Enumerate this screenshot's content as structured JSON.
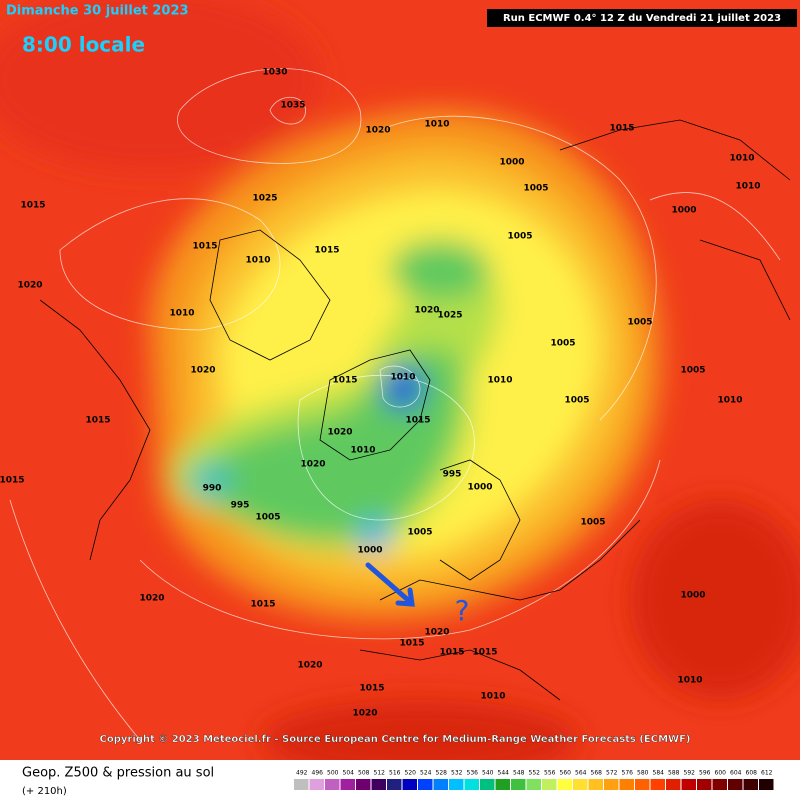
{
  "header": {
    "title": "Dimanche 30 juillet 2023",
    "subtitle": "8:00 locale",
    "run": "Run ECMWF 0.4° 12 Z du Vendredi 21 juillet 2023"
  },
  "map": {
    "isobar_labels": [
      "1030",
      "1035",
      "1020",
      "1010",
      "1015",
      "1010",
      "1000",
      "1010",
      "1005",
      "1025",
      "1000",
      "1015",
      "1005",
      "1015",
      "1010",
      "1015",
      "1020",
      "1010",
      "1020",
      "1025",
      "1005",
      "1005",
      "1020",
      "1010",
      "1015",
      "1010",
      "1005",
      "1015",
      "1020",
      "1015",
      "1010",
      "1020",
      "995",
      "1000",
      "990",
      "995",
      "1005",
      "1015",
      "1005",
      "1000",
      "1005",
      "1000",
      "1020",
      "1015",
      "1020",
      "1015",
      "1015",
      "1015",
      "1020",
      "1015",
      "1010",
      "1010",
      "1020",
      "1010",
      "1005"
    ],
    "copyright": "Copyright © 2023 Meteociel.fr - Source European Centre for Medium-Range Weather Forecasts (ECMWF)"
  },
  "footer": {
    "title": "Geop. Z500 & pression au sol",
    "subtitle": "(+ 210h)"
  },
  "colorbar": {
    "ticks": [
      492,
      496,
      500,
      504,
      508,
      512,
      516,
      520,
      524,
      528,
      532,
      536,
      540,
      544,
      548,
      552,
      556,
      560,
      564,
      568,
      572,
      576,
      580,
      584,
      588,
      592,
      596,
      600,
      604,
      608,
      612
    ],
    "colors": [
      "#bfbfbf",
      "#e0a0e0",
      "#c060c0",
      "#a020a0",
      "#700070",
      "#400060",
      "#202080",
      "#0000c0",
      "#0040ff",
      "#0080ff",
      "#00c0ff",
      "#00e0e0",
      "#00c080",
      "#20a020",
      "#40c040",
      "#80e060",
      "#c0f060",
      "#ffff40",
      "#ffe030",
      "#ffc020",
      "#ffa010",
      "#ff8000",
      "#ff6000",
      "#ff4000",
      "#e02000",
      "#c00000",
      "#a00000",
      "#800000",
      "#600000",
      "#400000",
      "#200000"
    ]
  }
}
